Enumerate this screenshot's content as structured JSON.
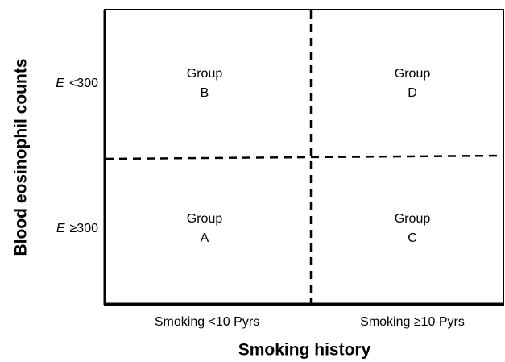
{
  "y_axis": {
    "title": "Blood eosinophil counts",
    "labels": [
      {
        "symbol": "E",
        "text": "<300"
      },
      {
        "symbol": "E",
        "text": "≥300"
      }
    ]
  },
  "x_axis": {
    "title": "Smoking history",
    "labels": [
      "Smoking <10 Pyrs",
      "Smoking ≥10 Pyrs"
    ]
  },
  "cells": [
    {
      "line1": "Group",
      "line2": "B"
    },
    {
      "line1": "Group",
      "line2": "D"
    },
    {
      "line1": "Group",
      "line2": "A"
    },
    {
      "line1": "Group",
      "line2": "C"
    }
  ]
}
